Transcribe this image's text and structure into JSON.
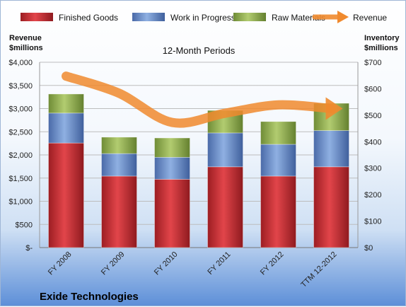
{
  "chart_data": {
    "type": "bar",
    "subtitle": "12-Month Periods",
    "company": "Exide Technologies",
    "left_axis_title": [
      "Revenue",
      "$millions"
    ],
    "right_axis_title": [
      "Inventory",
      "$millions"
    ],
    "categories": [
      "FY 2008",
      "FY 2009",
      "FY 2010",
      "FY 2011",
      "FY 2012",
      "TTM 12-2012"
    ],
    "left_ylim": [
      0,
      4000
    ],
    "left_ticks": [
      "$-",
      "$500",
      "$1,000",
      "$1,500",
      "$2,000",
      "$2,500",
      "$3,000",
      "$3,500",
      "$4,000"
    ],
    "right_ylim": [
      0,
      700
    ],
    "right_ticks": [
      "$0",
      "$100",
      "$200",
      "$300",
      "$400",
      "$500",
      "$600",
      "$700"
    ],
    "legend_position": "top",
    "series": [
      {
        "name": "Finished Goods",
        "axis": "right",
        "color": "#c0282e",
        "values": [
          395,
          270,
          258,
          305,
          270,
          305
        ]
      },
      {
        "name": "Work in Progress",
        "axis": "right",
        "color": "#5d82c2",
        "values": [
          113,
          85,
          83,
          128,
          120,
          137
        ]
      },
      {
        "name": "Raw Materials",
        "axis": "right",
        "color": "#8aa84a",
        "values": [
          72,
          62,
          73,
          85,
          86,
          103
        ]
      },
      {
        "name": "Revenue",
        "axis": "left",
        "type": "line",
        "color": "#f08a2e",
        "values": [
          3700,
          3330,
          2700,
          2900,
          3080,
          3000
        ]
      }
    ]
  }
}
